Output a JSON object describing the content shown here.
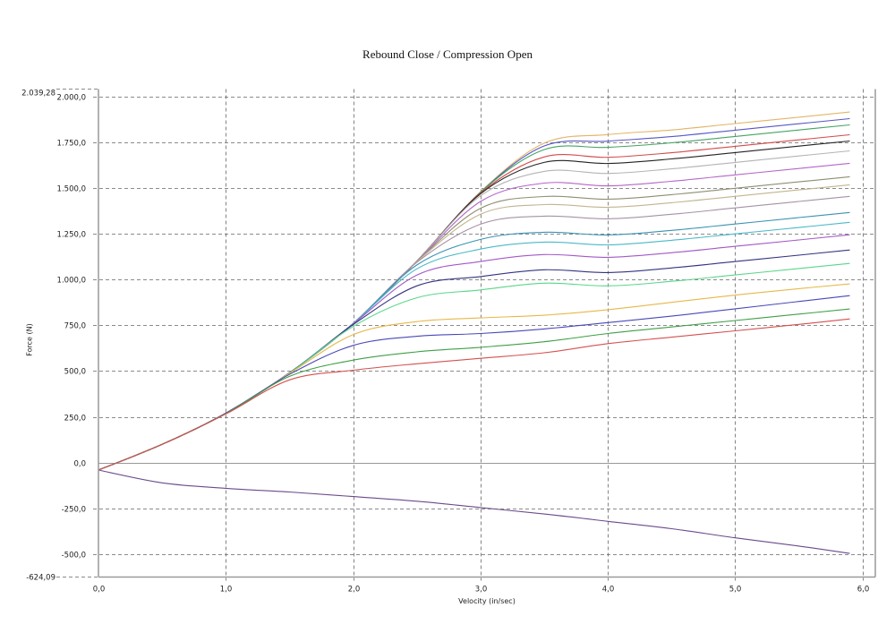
{
  "chart_data": {
    "type": "line",
    "title": "Rebound Close / Compression Open",
    "xlabel": "Velocity (in/sec)",
    "ylabel": "Force (N)",
    "xlim": [
      0,
      6.1
    ],
    "ylim": [
      -624.09,
      2039.28
    ],
    "ylim_labels": {
      "max": "2.039,28",
      "min": "-624,09"
    },
    "xticks": [
      0,
      1,
      2,
      3,
      4,
      5,
      6
    ],
    "xtick_labels": [
      "0,0",
      "1,0",
      "2,0",
      "3,0",
      "4,0",
      "5,0",
      "6,0"
    ],
    "yticks": [
      2000,
      1750,
      1500,
      1250,
      1000,
      750,
      500,
      250,
      0,
      -250,
      -500
    ],
    "ytick_labels": [
      "2.000,0",
      "1.750,0",
      "1.500,0",
      "1.250,0",
      "1.000,0",
      "750,0",
      "500,0",
      "250,0",
      "0,0",
      "-250,0",
      "-500,0"
    ],
    "grid": true,
    "legend": "none",
    "x": [
      0,
      0.5,
      1,
      1.5,
      2,
      2.5,
      3,
      3.5,
      4,
      4.5,
      5,
      5.5,
      5.9
    ],
    "series": [
      {
        "color": "#e2b569",
        "values": [
          -40,
          100,
          270,
          490,
          760,
          1100,
          1479,
          1744,
          1791,
          1816,
          1851,
          1886,
          1914
        ]
      },
      {
        "color": "#5656c4",
        "values": [
          -40,
          100,
          270,
          490,
          760,
          1100,
          1477,
          1729,
          1755,
          1780,
          1815,
          1850,
          1878
        ]
      },
      {
        "color": "#44a463",
        "values": [
          -40,
          100,
          270,
          490,
          760,
          1100,
          1476,
          1709,
          1721,
          1746,
          1781,
          1816,
          1844
        ]
      },
      {
        "color": "#d24a4a",
        "values": [
          -40,
          100,
          270,
          490,
          760,
          1100,
          1472,
          1669,
          1667,
          1692,
          1727,
          1762,
          1790
        ]
      },
      {
        "color": "#222222",
        "values": [
          -40,
          100,
          270,
          490,
          760,
          1100,
          1468,
          1639,
          1633,
          1658,
          1693,
          1728,
          1756
        ]
      },
      {
        "color": "#b4b4b4",
        "values": [
          -40,
          100,
          270,
          490,
          760,
          1100,
          1457,
          1590,
          1579,
          1604,
          1639,
          1674,
          1702
        ]
      },
      {
        "color": "#b466c8",
        "values": [
          -40,
          100,
          270,
          490,
          760,
          1099,
          1426,
          1526,
          1511,
          1536,
          1571,
          1606,
          1634
        ]
      },
      {
        "color": "#8e8e70",
        "values": [
          -40,
          100,
          270,
          490,
          760,
          1098,
          1389,
          1453,
          1438,
          1463,
          1498,
          1533,
          1561
        ]
      },
      {
        "color": "#c2b48e",
        "values": [
          -40,
          100,
          270,
          490,
          760,
          1097,
          1356,
          1409,
          1394,
          1419,
          1454,
          1489,
          1517
        ]
      },
      {
        "color": "#a592a5",
        "values": [
          -40,
          100,
          270,
          490,
          760,
          1093,
          1302,
          1346,
          1331,
          1356,
          1391,
          1426,
          1454
        ]
      },
      {
        "color": "#3a92b4",
        "values": [
          -40,
          100,
          270,
          490,
          760,
          1079,
          1219,
          1258,
          1243,
          1268,
          1303,
          1338,
          1366
        ]
      },
      {
        "color": "#4ab8c8",
        "values": [
          -40,
          100,
          270,
          490,
          760,
          1058,
          1166,
          1204,
          1189,
          1214,
          1249,
          1284,
          1312
        ]
      },
      {
        "color": "#a458c6",
        "values": [
          -40,
          100,
          270,
          490,
          758,
          1024,
          1098,
          1136,
          1121,
          1146,
          1181,
          1216,
          1244
        ]
      },
      {
        "color": "#333380",
        "values": [
          -40,
          100,
          270,
          490,
          754,
          965,
          1016,
          1053,
          1038,
          1063,
          1098,
          1133,
          1161
        ]
      },
      {
        "color": "#5ad68a",
        "values": [
          -40,
          100,
          270,
          489,
          744,
          900,
          943,
          980,
          965,
          990,
          1025,
          1060,
          1088
        ]
      },
      {
        "color": "#e6b84a",
        "values": [
          -40,
          100,
          270,
          487,
          699,
          770,
          790,
          805,
          835,
          875,
          915,
          950,
          976
        ]
      },
      {
        "color": "#4848b8",
        "values": [
          -40,
          100,
          270,
          482,
          640,
          690,
          705,
          730,
          765,
          800,
          840,
          880,
          912
        ]
      },
      {
        "color": "#3f9f47",
        "values": [
          -40,
          100,
          268,
          471,
          560,
          605,
          630,
          660,
          705,
          741,
          776,
          811,
          839
        ]
      },
      {
        "color": "#d45050",
        "values": [
          -40,
          100,
          266,
          452,
          505,
          540,
          570,
          600,
          650,
          685,
          720,
          755,
          785
        ]
      },
      {
        "color": "#6a4a8a",
        "values": [
          -40,
          -110,
          -140,
          -160,
          -185,
          -210,
          -245,
          -280,
          -320,
          -360,
          -410,
          -455,
          -495
        ]
      }
    ]
  }
}
